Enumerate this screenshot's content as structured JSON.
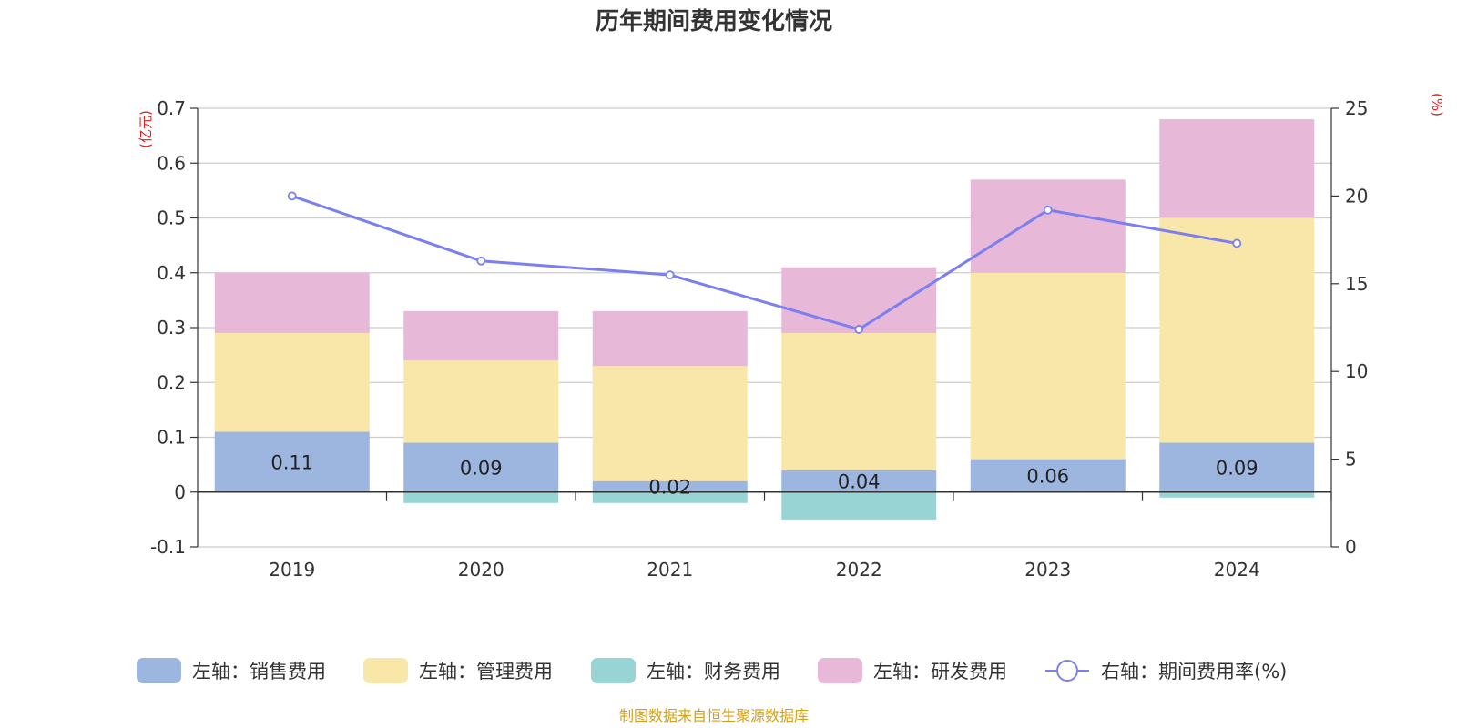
{
  "chart_data": {
    "type": "bar",
    "title": "历年期间费用变化情况",
    "categories": [
      "2019",
      "2020",
      "2021",
      "2022",
      "2023",
      "2024"
    ],
    "stacked": true,
    "left_axis": {
      "unit": "(亿元)",
      "ylim": [
        -0.1,
        0.7
      ],
      "ticks": [
        "0.7",
        "0.6",
        "0.5",
        "0.4",
        "0.3",
        "0.2",
        "0.1",
        "0",
        "-0.1"
      ]
    },
    "right_axis": {
      "unit": "(%)",
      "ylim": [
        0,
        25
      ],
      "ticks": [
        "25",
        "20",
        "15",
        "10",
        "5",
        "0"
      ]
    },
    "series": [
      {
        "name": "左轴：销售费用",
        "axis": "left",
        "color": "#9cb6e0",
        "values": [
          0.11,
          0.09,
          0.02,
          0.04,
          0.06,
          0.09
        ],
        "labels": [
          "0.11",
          "0.09",
          "0.02",
          "0.04",
          "0.06",
          "0.09"
        ]
      },
      {
        "name": "左轴：管理费用",
        "axis": "left",
        "color": "#f8e7a8",
        "values": [
          0.18,
          0.15,
          0.21,
          0.25,
          0.34,
          0.41
        ]
      },
      {
        "name": "左轴：财务费用",
        "axis": "left",
        "color": "#98d4d4",
        "values": [
          0,
          -0.02,
          -0.02,
          -0.05,
          0,
          -0.01
        ]
      },
      {
        "name": "左轴：研发费用",
        "axis": "left",
        "color": "#e8b8d8",
        "values": [
          0.11,
          0.09,
          0.1,
          0.12,
          0.17,
          0.18
        ]
      },
      {
        "name": "右轴：期间费用率(%)",
        "axis": "right",
        "type": "line",
        "color": "#7b7ff0",
        "values": [
          20.0,
          16.3,
          15.5,
          12.4,
          19.2,
          17.3
        ]
      }
    ],
    "grid": true,
    "legend_position": "bottom"
  },
  "source_note": "制图数据来自恒生聚源数据库",
  "colors": {
    "axis_unit": "#e02020",
    "source_note": "#d4a017",
    "grid": "#cccccc"
  }
}
